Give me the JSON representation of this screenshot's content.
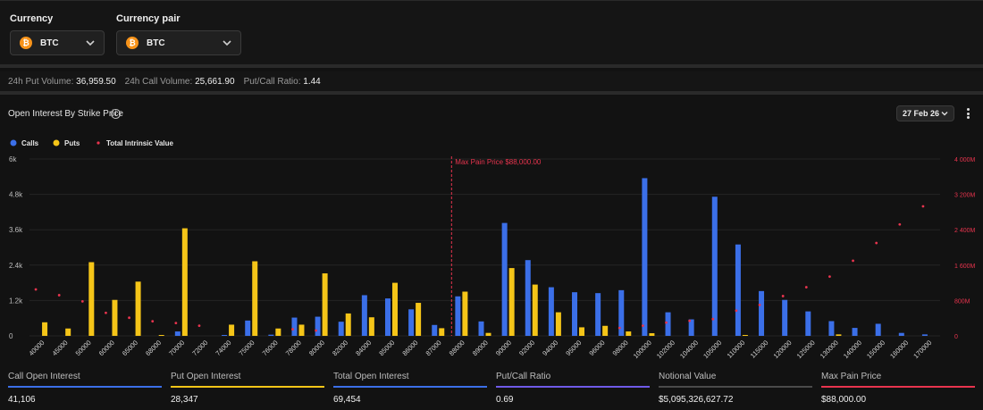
{
  "controls": {
    "currency_label": "Currency",
    "currency_value": "BTC",
    "pair_label": "Currency pair",
    "pair_value": "BTC",
    "coin_symbol": "₿"
  },
  "stats": {
    "put_volume_label": "24h Put Volume:",
    "put_volume_value": "36,959.50",
    "call_volume_label": "24h Call Volume:",
    "call_volume_value": "25,661.90",
    "ratio_label": "Put/Call Ratio:",
    "ratio_value": "1.44"
  },
  "panel": {
    "title": "Open Interest By Strike Price",
    "date": "27 Feb 26"
  },
  "colors": {
    "calls": "#3b6fe8",
    "puts": "#f5c518",
    "intrinsic": "#e8344e",
    "maxpain": "#e8344e",
    "notional_line": "#4a4a4a"
  },
  "chart_data": {
    "type": "bar",
    "legend": [
      "Calls",
      "Puts",
      "Total Intrinsic Value"
    ],
    "categories": [
      "40000",
      "45000",
      "50000",
      "60000",
      "65000",
      "68000",
      "70000",
      "72000",
      "74000",
      "75000",
      "76000",
      "78000",
      "80000",
      "82000",
      "84000",
      "85000",
      "86000",
      "87000",
      "88000",
      "89000",
      "90000",
      "92000",
      "94000",
      "95000",
      "96000",
      "98000",
      "100000",
      "102000",
      "104000",
      "105000",
      "110000",
      "115000",
      "120000",
      "125000",
      "130000",
      "140000",
      "150000",
      "160000",
      "170000"
    ],
    "series": [
      {
        "name": "Calls",
        "values": [
          0,
          0,
          0,
          0,
          0,
          0,
          150,
          0,
          30,
          520,
          40,
          620,
          650,
          480,
          1380,
          1270,
          900,
          370,
          1340,
          490,
          3830,
          2570,
          1650,
          1480,
          1450,
          1550,
          5350,
          800,
          560,
          4720,
          3100,
          1520,
          1220,
          830,
          500,
          270,
          410,
          100,
          50
        ]
      },
      {
        "name": "Puts",
        "values": [
          460,
          250,
          2500,
          1220,
          1840,
          30,
          3650,
          0,
          380,
          2530,
          250,
          380,
          2120,
          760,
          630,
          1800,
          1120,
          260,
          1500,
          100,
          2300,
          1740,
          800,
          290,
          340,
          150,
          90,
          0,
          0,
          0,
          30,
          0,
          0,
          0,
          50,
          0,
          0,
          0,
          0
        ]
      },
      {
        "name": "Total Intrinsic Value",
        "values": [
          1050,
          920,
          780,
          520,
          410,
          330,
          290,
          230,
          0,
          0,
          0,
          150,
          120,
          0,
          0,
          0,
          0,
          0,
          0,
          0,
          0,
          0,
          0,
          0,
          0,
          180,
          230,
          300,
          340,
          380,
          570,
          700,
          900,
          1100,
          1340,
          1700,
          2100,
          2520,
          2930
        ]
      }
    ],
    "left_ticks": [
      "0",
      "1.2k",
      "2.4k",
      "3.6k",
      "4.8k",
      "6k"
    ],
    "right_ticks": [
      "0",
      "800M",
      "1 600M",
      "2 400M",
      "3 200M",
      "4 000M"
    ],
    "ylim": [
      0,
      6000
    ],
    "y2lim": [
      0,
      4000
    ],
    "max_pain_label": "Max Pain Price $88,000.00",
    "max_pain_strike": "88000"
  },
  "metrics": [
    {
      "label": "Call Open Interest",
      "value": "41,106",
      "color": "#3b6fe8"
    },
    {
      "label": "Put Open Interest",
      "value": "28,347",
      "color": "#f5c518"
    },
    {
      "label": "Total Open Interest",
      "value": "69,454",
      "color": "#3b6fe8"
    },
    {
      "label": "Put/Call Ratio",
      "value": "0.69",
      "color": "#6f5ae8"
    },
    {
      "label": "Notional Value",
      "value": "$5,095,326,627.72",
      "color": "#4a4a4a"
    },
    {
      "label": "Max Pain Price",
      "value": "$88,000.00",
      "color": "#e8344e"
    }
  ]
}
